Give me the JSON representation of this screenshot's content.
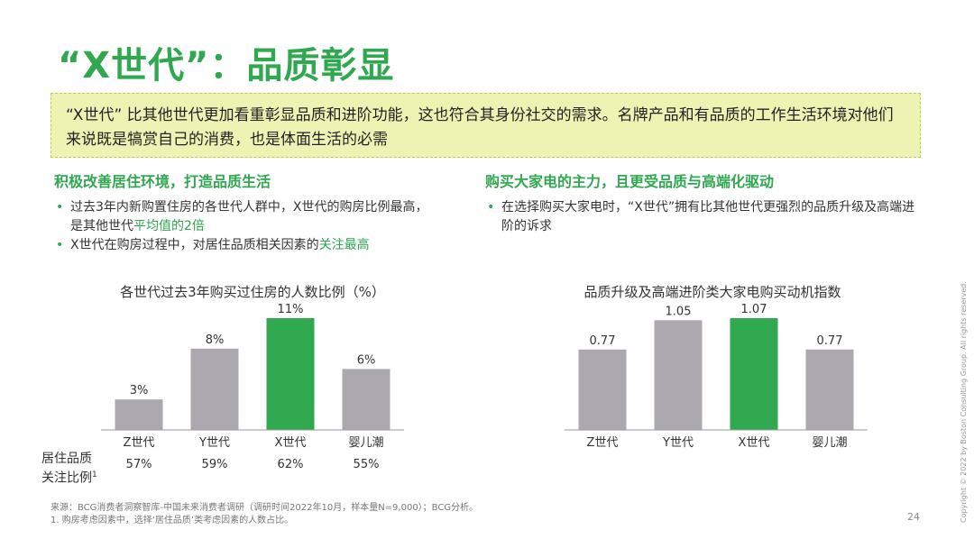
{
  "title": "“X世代”：品质彰显",
  "callout": "“X世代” 比其他世代更加看重彰显品质和进阶功能，这也符合其身份社交的需求。名牌产品和有品质的工作生活环境对他们来说既是犒赏自己的消费，也是体面生活的必需",
  "left": {
    "heading": "积极改善居住环境，打造品质生活",
    "bullets": [
      {
        "pre": "过去3年内新购置住房的各世代人群中，X世代的购房比例最高，是其他世代",
        "hl": "平均值的2倍",
        "post": ""
      },
      {
        "pre": "X世代在购房过程中，对居住品质相关因素的",
        "hl": "关注最高",
        "post": ""
      }
    ],
    "chart_title": "各世代过去3年购买过住房的人数比例（%）",
    "row_label_line1": "居住品质",
    "row_label_line2": "关注比例",
    "row_label_sup": "1",
    "row_values": [
      "57%",
      "59%",
      "62%",
      "55%"
    ]
  },
  "right": {
    "heading": "购买大家电的主力，且更受品质与高端化驱动",
    "bullets": [
      {
        "pre": "在选择购买大家电时，“X世代”拥有比其他世代更强烈的品质升级及高端进阶的诉求",
        "hl": "",
        "post": ""
      }
    ],
    "chart_title": "品质升级及高端进阶类大家电购买动机指数"
  },
  "colors": {
    "accent": "#2FA84F",
    "bar_gray": "#ABA8B0",
    "callout_bg": "#EEF3B4"
  },
  "chart_data": [
    {
      "type": "bar",
      "title": "各世代过去3年购买过住房的人数比例（%）",
      "categories": [
        "Z世代",
        "Y世代",
        "X世代",
        "婴儿潮"
      ],
      "values": [
        3,
        8,
        11,
        6
      ],
      "labels": [
        "3%",
        "8%",
        "11%",
        "6%"
      ],
      "highlight": "X世代",
      "ylim": [
        0,
        11
      ]
    },
    {
      "type": "bar",
      "title": "品质升级及高端进阶类大家电购买动机指数",
      "categories": [
        "Z世代",
        "Y世代",
        "X世代",
        "婴儿潮"
      ],
      "values": [
        0.77,
        1.05,
        1.07,
        0.77
      ],
      "labels": [
        "0.77",
        "1.05",
        "1.07",
        "0.77"
      ],
      "highlight": "X世代",
      "ylim": [
        0,
        1.07
      ]
    }
  ],
  "footnote_line1": "来源：BCG消费者洞察智库-中国未来消费者调研（调研时间2022年10月，样本量N=9,000）；BCG分析。",
  "footnote_line2": "1. 购房考虑因素中，选择‘居住品质’类考虑因素的人数占比。",
  "page_number": "24",
  "copyright": "Copyright © 2022 by Boston Consulting Group. All rights reserved."
}
